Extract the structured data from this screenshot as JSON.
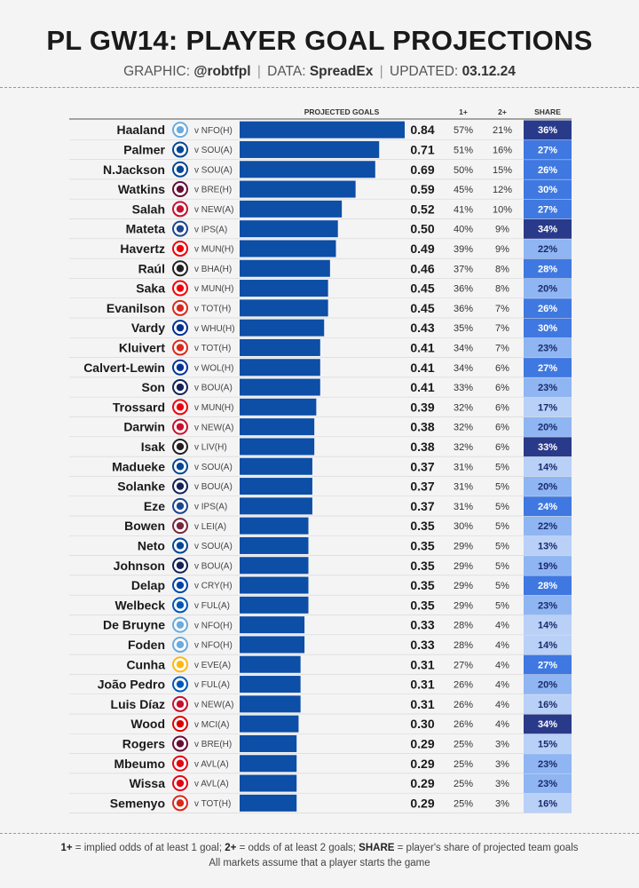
{
  "header": {
    "title": "PL GW14: PLAYER GOAL PROJECTIONS",
    "graphic_label": "GRAPHIC:",
    "graphic_value": "@robtfpl",
    "data_label": "DATA:",
    "data_value": "SpreadEx",
    "updated_label": "UPDATED:",
    "updated_value": "03.12.24",
    "separator": "|"
  },
  "footer": {
    "k1": "1+",
    "t1": " = implied odds of at least 1 goal; ",
    "k2": "2+",
    "t2": " = odds of at least 2 goals; ",
    "k3": "SHARE",
    "t3": " = player's share of projected team goals",
    "line2": "All markets assume that a player starts the game"
  },
  "chart_data": {
    "type": "bar",
    "columns": {
      "projected": "PROJECTED GOALS",
      "one_plus": "1+",
      "two_plus": "2+",
      "share": "SHARE"
    },
    "xlim": [
      0,
      0.84
    ],
    "colors": {
      "bar": "#0d4ea6",
      "share_dark": "#2a3a8a",
      "share_mid": "#3f78e0",
      "share_light": "#8fb5f2",
      "share_pale": "#b9d0f7"
    },
    "players": [
      {
        "name": "Haaland",
        "club": "MCI",
        "fixture": "v NFO(H)",
        "xg": 0.84,
        "p1": "57%",
        "p2": "21%",
        "share": "36%",
        "share_val": 36
      },
      {
        "name": "Palmer",
        "club": "CHE",
        "fixture": "v SOU(A)",
        "xg": 0.71,
        "p1": "51%",
        "p2": "16%",
        "share": "27%",
        "share_val": 27
      },
      {
        "name": "N.Jackson",
        "club": "CHE",
        "fixture": "v SOU(A)",
        "xg": 0.69,
        "p1": "50%",
        "p2": "15%",
        "share": "26%",
        "share_val": 26
      },
      {
        "name": "Watkins",
        "club": "AVL",
        "fixture": "v BRE(H)",
        "xg": 0.59,
        "p1": "45%",
        "p2": "12%",
        "share": "30%",
        "share_val": 30
      },
      {
        "name": "Salah",
        "club": "LIV",
        "fixture": "v NEW(A)",
        "xg": 0.52,
        "p1": "41%",
        "p2": "10%",
        "share": "27%",
        "share_val": 27
      },
      {
        "name": "Mateta",
        "club": "CRY",
        "fixture": "v IPS(A)",
        "xg": 0.5,
        "p1": "40%",
        "p2": "9%",
        "share": "34%",
        "share_val": 34
      },
      {
        "name": "Havertz",
        "club": "ARS",
        "fixture": "v MUN(H)",
        "xg": 0.49,
        "p1": "39%",
        "p2": "9%",
        "share": "22%",
        "share_val": 22
      },
      {
        "name": "Raúl",
        "club": "FUL",
        "fixture": "v BHA(H)",
        "xg": 0.46,
        "p1": "37%",
        "p2": "8%",
        "share": "28%",
        "share_val": 28
      },
      {
        "name": "Saka",
        "club": "ARS",
        "fixture": "v MUN(H)",
        "xg": 0.45,
        "p1": "36%",
        "p2": "8%",
        "share": "20%",
        "share_val": 20
      },
      {
        "name": "Evanilson",
        "club": "BOU",
        "fixture": "v TOT(H)",
        "xg": 0.45,
        "p1": "36%",
        "p2": "7%",
        "share": "26%",
        "share_val": 26
      },
      {
        "name": "Vardy",
        "club": "LEI",
        "fixture": "v WHU(H)",
        "xg": 0.43,
        "p1": "35%",
        "p2": "7%",
        "share": "30%",
        "share_val": 30
      },
      {
        "name": "Kluivert",
        "club": "BOU",
        "fixture": "v TOT(H)",
        "xg": 0.41,
        "p1": "34%",
        "p2": "7%",
        "share": "23%",
        "share_val": 23
      },
      {
        "name": "Calvert-Lewin",
        "club": "EVE",
        "fixture": "v WOL(H)",
        "xg": 0.41,
        "p1": "34%",
        "p2": "6%",
        "share": "27%",
        "share_val": 27
      },
      {
        "name": "Son",
        "club": "TOT",
        "fixture": "v BOU(A)",
        "xg": 0.41,
        "p1": "33%",
        "p2": "6%",
        "share": "23%",
        "share_val": 23
      },
      {
        "name": "Trossard",
        "club": "ARS",
        "fixture": "v MUN(H)",
        "xg": 0.39,
        "p1": "32%",
        "p2": "6%",
        "share": "17%",
        "share_val": 17
      },
      {
        "name": "Darwin",
        "club": "LIV",
        "fixture": "v NEW(A)",
        "xg": 0.38,
        "p1": "32%",
        "p2": "6%",
        "share": "20%",
        "share_val": 20
      },
      {
        "name": "Isak",
        "club": "NEW",
        "fixture": "v LIV(H)",
        "xg": 0.38,
        "p1": "32%",
        "p2": "6%",
        "share": "33%",
        "share_val": 33
      },
      {
        "name": "Madueke",
        "club": "CHE",
        "fixture": "v SOU(A)",
        "xg": 0.37,
        "p1": "31%",
        "p2": "5%",
        "share": "14%",
        "share_val": 14
      },
      {
        "name": "Solanke",
        "club": "TOT",
        "fixture": "v BOU(A)",
        "xg": 0.37,
        "p1": "31%",
        "p2": "5%",
        "share": "20%",
        "share_val": 20
      },
      {
        "name": "Eze",
        "club": "CRY",
        "fixture": "v IPS(A)",
        "xg": 0.37,
        "p1": "31%",
        "p2": "5%",
        "share": "24%",
        "share_val": 24
      },
      {
        "name": "Bowen",
        "club": "WHU",
        "fixture": "v LEI(A)",
        "xg": 0.35,
        "p1": "30%",
        "p2": "5%",
        "share": "22%",
        "share_val": 22
      },
      {
        "name": "Neto",
        "club": "CHE",
        "fixture": "v SOU(A)",
        "xg": 0.35,
        "p1": "29%",
        "p2": "5%",
        "share": "13%",
        "share_val": 13
      },
      {
        "name": "Johnson",
        "club": "TOT",
        "fixture": "v BOU(A)",
        "xg": 0.35,
        "p1": "29%",
        "p2": "5%",
        "share": "19%",
        "share_val": 19
      },
      {
        "name": "Delap",
        "club": "IPS",
        "fixture": "v CRY(H)",
        "xg": 0.35,
        "p1": "29%",
        "p2": "5%",
        "share": "28%",
        "share_val": 28
      },
      {
        "name": "Welbeck",
        "club": "BHA",
        "fixture": "v FUL(A)",
        "xg": 0.35,
        "p1": "29%",
        "p2": "5%",
        "share": "23%",
        "share_val": 23
      },
      {
        "name": "De Bruyne",
        "club": "MCI",
        "fixture": "v NFO(H)",
        "xg": 0.33,
        "p1": "28%",
        "p2": "4%",
        "share": "14%",
        "share_val": 14
      },
      {
        "name": "Foden",
        "club": "MCI",
        "fixture": "v NFO(H)",
        "xg": 0.33,
        "p1": "28%",
        "p2": "4%",
        "share": "14%",
        "share_val": 14
      },
      {
        "name": "Cunha",
        "club": "WOL",
        "fixture": "v EVE(A)",
        "xg": 0.31,
        "p1": "27%",
        "p2": "4%",
        "share": "27%",
        "share_val": 27
      },
      {
        "name": "João Pedro",
        "club": "BHA",
        "fixture": "v FUL(A)",
        "xg": 0.31,
        "p1": "26%",
        "p2": "4%",
        "share": "20%",
        "share_val": 20
      },
      {
        "name": "Luis Díaz",
        "club": "LIV",
        "fixture": "v NEW(A)",
        "xg": 0.31,
        "p1": "26%",
        "p2": "4%",
        "share": "16%",
        "share_val": 16
      },
      {
        "name": "Wood",
        "club": "NFO",
        "fixture": "v MCI(A)",
        "xg": 0.3,
        "p1": "26%",
        "p2": "4%",
        "share": "34%",
        "share_val": 34
      },
      {
        "name": "Rogers",
        "club": "AVL",
        "fixture": "v BRE(H)",
        "xg": 0.29,
        "p1": "25%",
        "p2": "3%",
        "share": "15%",
        "share_val": 15
      },
      {
        "name": "Mbeumo",
        "club": "BRE",
        "fixture": "v AVL(A)",
        "xg": 0.29,
        "p1": "25%",
        "p2": "3%",
        "share": "23%",
        "share_val": 23
      },
      {
        "name": "Wissa",
        "club": "BRE",
        "fixture": "v AVL(A)",
        "xg": 0.29,
        "p1": "25%",
        "p2": "3%",
        "share": "23%",
        "share_val": 23
      },
      {
        "name": "Semenyo",
        "club": "BOU",
        "fixture": "v TOT(H)",
        "xg": 0.29,
        "p1": "25%",
        "p2": "3%",
        "share": "16%",
        "share_val": 16
      }
    ],
    "club_colors": {
      "MCI": "#6cabdd",
      "CHE": "#034694",
      "AVL": "#670e36",
      "LIV": "#c8102e",
      "CRY": "#1b458f",
      "ARS": "#ef0107",
      "FUL": "#222222",
      "BOU": "#da291c",
      "LEI": "#003090",
      "EVE": "#003399",
      "TOT": "#132257",
      "NEW": "#241f20",
      "WHU": "#7a263a",
      "IPS": "#0044a9",
      "BHA": "#0057b8",
      "WOL": "#fdb913",
      "NFO": "#dd0000",
      "BRE": "#e30613"
    }
  }
}
